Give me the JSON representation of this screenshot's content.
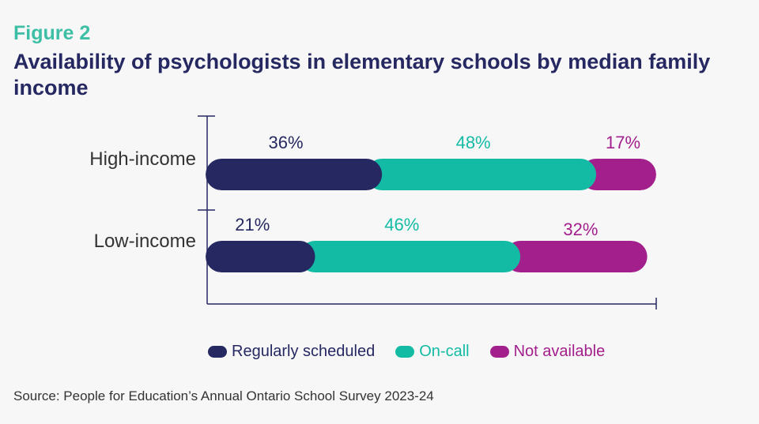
{
  "header": {
    "figure_label": "Figure 2",
    "title": "Availability of psychologists in elementary schools by median family income"
  },
  "colors": {
    "regularly_scheduled": "#262862",
    "on_call": "#13bba4",
    "not_available": "#a31f8c",
    "axis": "#262862",
    "category_text": "#333333"
  },
  "chart_data": {
    "type": "bar",
    "orientation": "horizontal",
    "stacked": true,
    "title": "Availability of psychologists in elementary schools by median family income",
    "categories": [
      "High-income",
      "Low-income"
    ],
    "series": [
      {
        "name": "Regularly scheduled",
        "values": [
          36,
          21
        ],
        "labels": [
          "36%",
          "21%"
        ],
        "color_key": "regularly_scheduled"
      },
      {
        "name": "On-call",
        "values": [
          48,
          46
        ],
        "labels": [
          "48%",
          "46%"
        ],
        "color_key": "on_call"
      },
      {
        "name": "Not available",
        "values": [
          17,
          32
        ],
        "labels": [
          "17%",
          "32%"
        ],
        "color_key": "not_available"
      }
    ],
    "xlim": [
      0,
      101
    ],
    "legend_position": "bottom",
    "grid": false
  },
  "legend": {
    "items": [
      {
        "label": "Regularly scheduled",
        "color_key": "regularly_scheduled"
      },
      {
        "label": "On-call",
        "color_key": "on_call"
      },
      {
        "label": "Not available",
        "color_key": "not_available"
      }
    ]
  },
  "footer": {
    "source": "Source: People for Education’s Annual Ontario School Survey 2023-24"
  }
}
